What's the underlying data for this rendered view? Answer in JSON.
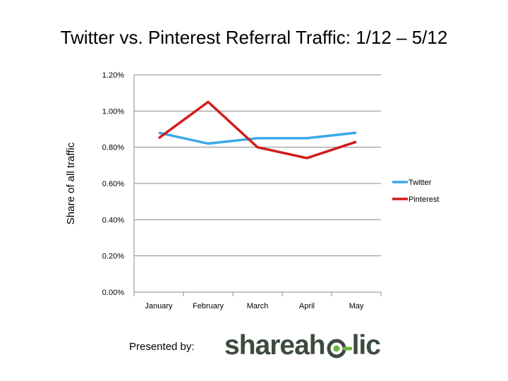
{
  "chart_data": {
    "type": "line",
    "title": "Twitter vs. Pinterest Referral Traffic: 1/12 – 5/12",
    "xlabel": "",
    "ylabel": "Share of all traffic",
    "categories": [
      "January",
      "February",
      "March",
      "April",
      "May"
    ],
    "y_ticks": [
      "0.00%",
      "0.20%",
      "0.40%",
      "0.60%",
      "0.80%",
      "1.00%",
      "1.20%"
    ],
    "ylim": [
      0,
      1.2
    ],
    "y_unit": "percent",
    "grid": true,
    "legend": "right",
    "series": [
      {
        "name": "Twitter",
        "color": "#39a9e6",
        "values": [
          0.88,
          0.82,
          0.85,
          0.85,
          0.88
        ]
      },
      {
        "name": "Pinterest",
        "color": "#d11c1c",
        "values": [
          0.85,
          1.05,
          0.8,
          0.74,
          0.83
        ]
      }
    ]
  },
  "footer": {
    "presented_label": "Presented by:",
    "logo_text_left": "shareah",
    "logo_text_right": "lic",
    "logo_icon": "eye-o-icon",
    "logo_color": "#3d4a3f",
    "logo_accent": "#6fb33f"
  }
}
